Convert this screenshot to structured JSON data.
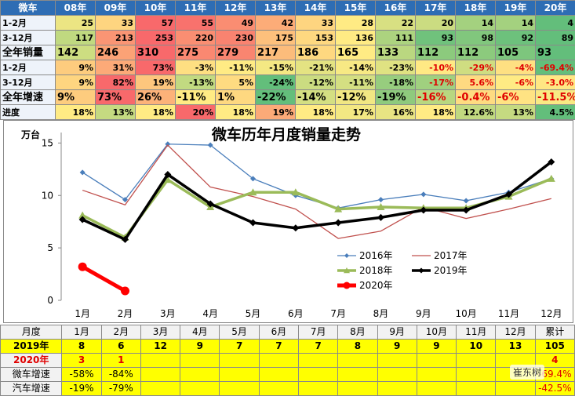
{
  "top_table": {
    "header": [
      "微车",
      "08年",
      "09年",
      "10年",
      "11年",
      "12年",
      "13年",
      "14年",
      "15年",
      "16年",
      "17年",
      "18年",
      "19年",
      "20年"
    ],
    "rows": [
      [
        "1-2月",
        25,
        33,
        57,
        55,
        49,
        42,
        33,
        28,
        22,
        20,
        14,
        14,
        4
      ],
      [
        "3-12月",
        117,
        213,
        253,
        220,
        230,
        175,
        153,
        136,
        111,
        93,
        98,
        92,
        89
      ],
      [
        "全年销量",
        142,
        246,
        310,
        275,
        279,
        217,
        186,
        165,
        133,
        112,
        112,
        105,
        93
      ],
      [
        "1-2月",
        "9%",
        "31%",
        "73%",
        "-3%",
        "-11%",
        "-15%",
        "-21%",
        "-14%",
        "-23%",
        "-10%",
        "-29%",
        "-4%",
        "-69.4%"
      ],
      [
        "3-12月",
        "9%",
        "82%",
        "19%",
        "-13%",
        "5%",
        "-24%",
        "-12%",
        "-11%",
        "-18%",
        "-17%",
        "5.6%",
        "-6%",
        "-3.0%"
      ],
      [
        "全年增速",
        "9%",
        "73%",
        "26%",
        "-11%",
        "1%",
        "-22%",
        "-14%",
        "-12%",
        "-19%",
        "-16%",
        "-0.4%",
        "-6%",
        "-11.5%"
      ],
      [
        "进度",
        "18%",
        "13%",
        "18%",
        "20%",
        "18%",
        "19%",
        "18%",
        "17%",
        "16%",
        "18%",
        "12.6%",
        "13%",
        "4.5%"
      ]
    ]
  },
  "chart_data": {
    "type": "line",
    "title": "微车历年月度销量走势",
    "y_label": "万台",
    "categories": [
      "1月",
      "2月",
      "3月",
      "4月",
      "5月",
      "6月",
      "7月",
      "8月",
      "9月",
      "10月",
      "11月",
      "12月"
    ],
    "ylim": [
      0,
      16
    ],
    "yticks": [
      0,
      5,
      10,
      15
    ],
    "series": [
      {
        "name": "2016年",
        "color": "#4a7ebb",
        "marker": "diamond",
        "values": [
          12.2,
          9.6,
          14.9,
          14.8,
          11.6,
          10.0,
          8.8,
          9.6,
          10.1,
          9.5,
          10.3,
          11.6
        ]
      },
      {
        "name": "2017年",
        "color": "#c0504d",
        "marker": "none",
        "values": [
          10.5,
          9.1,
          14.8,
          10.8,
          9.9,
          8.7,
          5.9,
          6.6,
          8.9,
          7.8,
          8.7,
          9.7
        ]
      },
      {
        "name": "2018年",
        "color": "#9bbb59",
        "marker": "triangle",
        "values": [
          8.1,
          6.0,
          11.5,
          8.9,
          10.3,
          10.3,
          8.7,
          8.9,
          8.8,
          8.8,
          9.9,
          11.6
        ]
      },
      {
        "name": "2019年",
        "color": "#000000",
        "marker": "diamond",
        "values": [
          7.7,
          5.8,
          12.0,
          9.2,
          7.4,
          6.9,
          7.4,
          7.9,
          8.6,
          8.6,
          10.1,
          13.2
        ]
      },
      {
        "name": "2020年",
        "color": "#ff0000",
        "marker": "circle",
        "values": [
          3.2,
          0.9,
          null,
          null,
          null,
          null,
          null,
          null,
          null,
          null,
          null,
          null
        ]
      }
    ]
  },
  "bottom_table": {
    "header": [
      "月度",
      "1月",
      "2月",
      "3月",
      "4月",
      "5月",
      "6月",
      "7月",
      "8月",
      "9月",
      "10月",
      "11月",
      "12月",
      "累计"
    ],
    "rows": [
      [
        "2019年",
        8,
        6,
        12,
        9,
        7,
        7,
        7,
        8,
        9,
        9,
        10,
        13,
        105
      ],
      [
        "2020年",
        3,
        1,
        null,
        null,
        null,
        null,
        null,
        null,
        null,
        null,
        null,
        null,
        4
      ],
      [
        "微车增速",
        "-58%",
        "-84%",
        null,
        null,
        null,
        null,
        null,
        null,
        null,
        null,
        null,
        null,
        "-69.4%"
      ],
      [
        "汽车增速",
        "-19%",
        "-79%",
        null,
        null,
        null,
        null,
        null,
        null,
        null,
        null,
        null,
        null,
        "-42.5%"
      ]
    ]
  },
  "watermark": "崔东树"
}
